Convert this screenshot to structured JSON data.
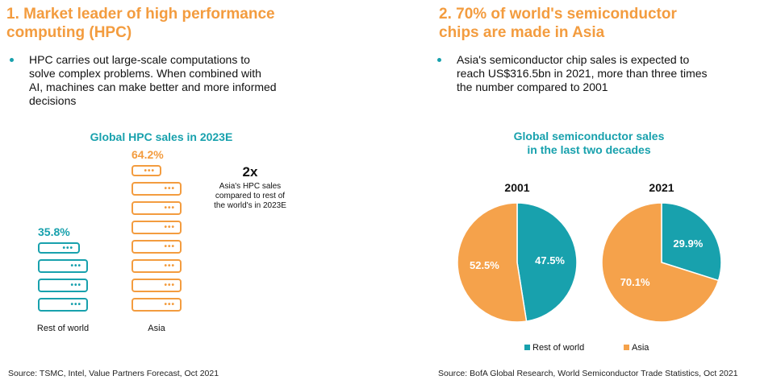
{
  "left": {
    "heading": [
      "1. Market leader of high performance",
      "computing (HPC)"
    ],
    "bullet": [
      "HPC carries out large-scale computations to",
      "solve complex problems. When combined with",
      "AI, machines can make better and more informed",
      "decisions"
    ],
    "chart_title": "Global HPC sales in 2023E",
    "callout_big": "2x",
    "callout_small": [
      "Asia's HPC sales",
      "compared to rest of",
      "the world's in 2023E"
    ],
    "source": "Source: TSMC, Intel, Value Partners Forecast, Oct 2021"
  },
  "right": {
    "heading": [
      "2. 70% of world's semiconductor",
      "chips are made in Asia"
    ],
    "bullet": [
      "Asia's semiconductor chip sales is expected to",
      "reach US$316.5bn in 2021, more than three times",
      "the number compared to 2001"
    ],
    "chart_title": [
      "Global semiconductor sales",
      "in the last two decades"
    ],
    "source": "Source: BofA Global Research, World Semiconductor Trade Statistics, Oct 2021"
  },
  "colors": {
    "accent_orange": "#f39c3f",
    "accent_teal": "#18a1ad",
    "pie_orange": "#f5a24b",
    "pie_teal": "#18a1ad"
  },
  "icons": {
    "server": "server-rack-icon"
  },
  "chart_data": [
    {
      "type": "bar",
      "title": "Global HPC sales in 2023E",
      "categories": [
        "Rest of world",
        "Asia"
      ],
      "values": [
        35.8,
        64.2
      ],
      "value_labels": [
        "35.8%",
        "64.2%"
      ],
      "unit": "%",
      "grid": false
    },
    {
      "type": "pie",
      "title": "Global semiconductor sales in the last two decades",
      "legend_position": "bottom",
      "legend": [
        "Rest of world",
        "Asia"
      ],
      "pies": [
        {
          "label": "2001",
          "slices": [
            {
              "name": "Rest of world",
              "value": 47.5,
              "label": "47.5%"
            },
            {
              "name": "Asia",
              "value": 52.5,
              "label": "52.5%"
            }
          ]
        },
        {
          "label": "2021",
          "slices": [
            {
              "name": "Rest of world",
              "value": 29.9,
              "label": "29.9%"
            },
            {
              "name": "Asia",
              "value": 70.1,
              "label": "70.1%"
            }
          ]
        }
      ]
    }
  ]
}
